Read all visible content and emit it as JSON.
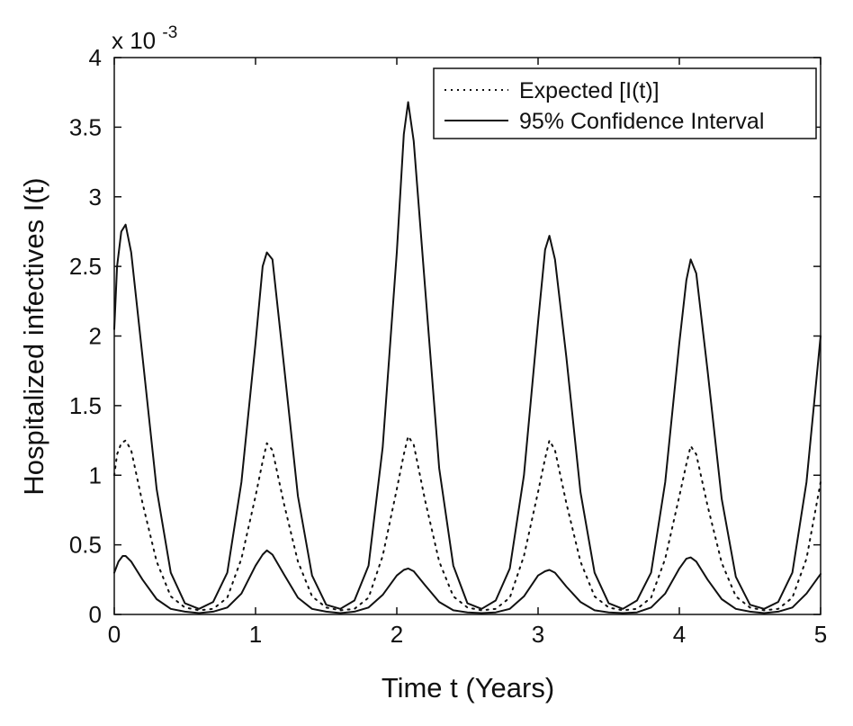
{
  "chart_data": {
    "type": "line",
    "xlabel": "Time t (Years)",
    "ylabel": "Hospitalized infectives I(t)",
    "y_scale_label": "x 10",
    "y_scale_exponent": "-3",
    "xlim": [
      0,
      5
    ],
    "ylim": [
      0,
      4
    ],
    "x_ticks": [
      0,
      1,
      2,
      3,
      4,
      5
    ],
    "x_tick_labels": [
      "0",
      "1",
      "2",
      "3",
      "4",
      "5"
    ],
    "y_ticks": [
      0,
      0.5,
      1,
      1.5,
      2,
      2.5,
      3,
      3.5,
      4
    ],
    "y_tick_labels": [
      "0",
      "0.5",
      "1",
      "1.5",
      "2",
      "2.5",
      "3",
      "3.5",
      "4"
    ],
    "grid": false,
    "legend_position": "top-right",
    "colors": {
      "line": "#111111",
      "background": "#ffffff"
    },
    "series": [
      {
        "name": "Expected [I(t)]",
        "style": "dotted",
        "x": [
          0,
          0.02,
          0.05,
          0.08,
          0.12,
          0.2,
          0.3,
          0.4,
          0.5,
          0.6,
          0.7,
          0.8,
          0.9,
          1.0,
          1.05,
          1.08,
          1.12,
          1.2,
          1.3,
          1.4,
          1.5,
          1.6,
          1.7,
          1.8,
          1.9,
          2.0,
          2.05,
          2.08,
          2.12,
          2.2,
          2.3,
          2.4,
          2.5,
          2.6,
          2.7,
          2.8,
          2.9,
          3.0,
          3.05,
          3.08,
          3.12,
          3.2,
          3.3,
          3.4,
          3.5,
          3.6,
          3.7,
          3.8,
          3.9,
          4.0,
          4.05,
          4.08,
          4.12,
          4.2,
          4.3,
          4.4,
          4.5,
          4.6,
          4.7,
          4.8,
          4.9,
          5.0
        ],
        "y": [
          1.0,
          1.15,
          1.23,
          1.25,
          1.18,
          0.8,
          0.38,
          0.13,
          0.05,
          0.03,
          0.04,
          0.12,
          0.4,
          0.85,
          1.1,
          1.23,
          1.18,
          0.8,
          0.38,
          0.13,
          0.05,
          0.03,
          0.04,
          0.12,
          0.42,
          0.9,
          1.15,
          1.28,
          1.22,
          0.82,
          0.38,
          0.13,
          0.05,
          0.03,
          0.04,
          0.12,
          0.42,
          0.88,
          1.12,
          1.25,
          1.18,
          0.8,
          0.38,
          0.13,
          0.05,
          0.03,
          0.04,
          0.12,
          0.4,
          0.85,
          1.08,
          1.21,
          1.15,
          0.78,
          0.37,
          0.13,
          0.05,
          0.03,
          0.04,
          0.12,
          0.4,
          0.95
        ]
      },
      {
        "name": "95% Confidence Interval",
        "style": "solid",
        "bound": "upper",
        "x": [
          0,
          0.02,
          0.05,
          0.08,
          0.12,
          0.2,
          0.3,
          0.4,
          0.5,
          0.6,
          0.7,
          0.8,
          0.9,
          1.0,
          1.05,
          1.08,
          1.12,
          1.2,
          1.3,
          1.4,
          1.5,
          1.6,
          1.7,
          1.8,
          1.9,
          2.0,
          2.05,
          2.08,
          2.12,
          2.2,
          2.3,
          2.4,
          2.5,
          2.6,
          2.7,
          2.8,
          2.9,
          3.0,
          3.05,
          3.08,
          3.12,
          3.2,
          3.3,
          3.4,
          3.5,
          3.6,
          3.7,
          3.8,
          3.9,
          4.0,
          4.05,
          4.08,
          4.12,
          4.2,
          4.3,
          4.4,
          4.5,
          4.6,
          4.7,
          4.8,
          4.9,
          5.0
        ],
        "y": [
          2.05,
          2.5,
          2.75,
          2.8,
          2.6,
          1.85,
          0.9,
          0.3,
          0.08,
          0.04,
          0.09,
          0.3,
          0.95,
          1.95,
          2.5,
          2.6,
          2.55,
          1.8,
          0.85,
          0.28,
          0.07,
          0.04,
          0.1,
          0.35,
          1.2,
          2.6,
          3.45,
          3.68,
          3.4,
          2.35,
          1.05,
          0.35,
          0.08,
          0.04,
          0.1,
          0.33,
          1.0,
          2.1,
          2.62,
          2.72,
          2.55,
          1.85,
          0.88,
          0.3,
          0.08,
          0.04,
          0.1,
          0.3,
          0.95,
          1.95,
          2.4,
          2.55,
          2.45,
          1.75,
          0.83,
          0.27,
          0.07,
          0.04,
          0.09,
          0.3,
          0.95,
          2.0
        ]
      },
      {
        "name": "",
        "style": "solid",
        "bound": "lower",
        "x": [
          0,
          0.03,
          0.06,
          0.08,
          0.12,
          0.2,
          0.3,
          0.4,
          0.5,
          0.6,
          0.7,
          0.8,
          0.9,
          1.0,
          1.05,
          1.08,
          1.12,
          1.2,
          1.3,
          1.4,
          1.5,
          1.6,
          1.7,
          1.8,
          1.9,
          2.0,
          2.05,
          2.08,
          2.12,
          2.2,
          2.3,
          2.4,
          2.5,
          2.6,
          2.7,
          2.8,
          2.9,
          3.0,
          3.05,
          3.08,
          3.12,
          3.2,
          3.3,
          3.4,
          3.5,
          3.6,
          3.7,
          3.8,
          3.9,
          4.0,
          4.05,
          4.08,
          4.12,
          4.2,
          4.3,
          4.4,
          4.5,
          4.6,
          4.7,
          4.8,
          4.9,
          5.0
        ],
        "y": [
          0.3,
          0.38,
          0.42,
          0.42,
          0.38,
          0.25,
          0.11,
          0.04,
          0.02,
          0.01,
          0.02,
          0.05,
          0.15,
          0.35,
          0.43,
          0.46,
          0.43,
          0.29,
          0.12,
          0.04,
          0.02,
          0.01,
          0.02,
          0.05,
          0.14,
          0.28,
          0.32,
          0.33,
          0.31,
          0.21,
          0.09,
          0.03,
          0.015,
          0.01,
          0.015,
          0.04,
          0.13,
          0.28,
          0.31,
          0.32,
          0.3,
          0.2,
          0.09,
          0.03,
          0.015,
          0.01,
          0.015,
          0.05,
          0.15,
          0.33,
          0.4,
          0.41,
          0.38,
          0.25,
          0.11,
          0.04,
          0.02,
          0.01,
          0.02,
          0.05,
          0.15,
          0.29
        ]
      }
    ]
  }
}
